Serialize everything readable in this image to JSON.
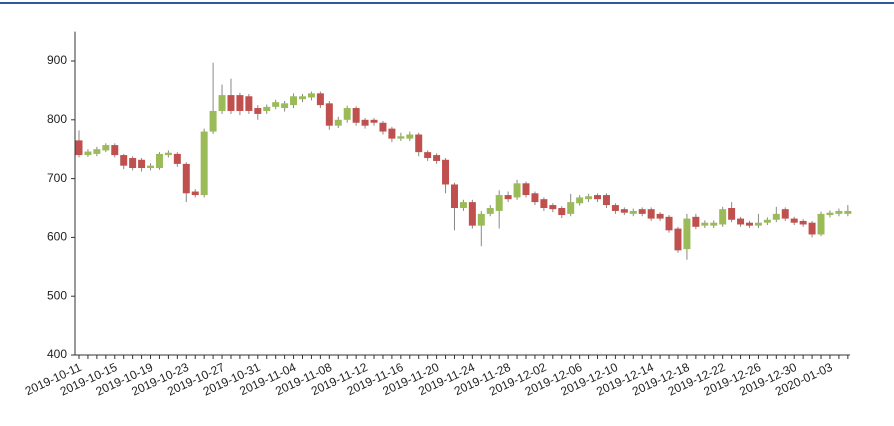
{
  "chart_data": {
    "type": "candlestick",
    "categories": [
      "2019-10-11",
      null,
      null,
      null,
      "2019-10-15",
      null,
      null,
      null,
      "2019-10-19",
      null,
      null,
      null,
      "2019-10-23",
      null,
      null,
      null,
      "2019-10-27",
      null,
      null,
      null,
      "2019-10-31",
      null,
      null,
      null,
      "2019-11-04",
      null,
      null,
      null,
      "2019-11-08",
      null,
      null,
      null,
      "2019-11-12",
      null,
      null,
      null,
      "2019-11-16",
      null,
      null,
      null,
      "2019-11-20",
      null,
      null,
      null,
      "2019-11-24",
      null,
      null,
      null,
      "2019-11-28",
      null,
      null,
      null,
      "2019-12-02",
      null,
      null,
      null,
      "2019-12-06",
      null,
      null,
      null,
      "2019-12-10",
      null,
      null,
      null,
      "2019-12-14",
      null,
      null,
      null,
      "2019-12-18",
      null,
      null,
      null,
      "2019-12-22",
      null,
      null,
      null,
      "2019-12-26",
      null,
      null,
      null,
      "2019-12-30",
      null,
      null,
      null,
      "2020-01-03",
      null,
      null
    ],
    "open": [
      765,
      740,
      742,
      748,
      757,
      740,
      735,
      732,
      718,
      718,
      740,
      742,
      725,
      678,
      672,
      780,
      815,
      842,
      842,
      840,
      820,
      815,
      822,
      820,
      825,
      835,
      838,
      845,
      828,
      790,
      800,
      820,
      800,
      800,
      795,
      785,
      768,
      768,
      775,
      745,
      740,
      732,
      690,
      650,
      660,
      620,
      640,
      645,
      672,
      668,
      692,
      675,
      665,
      655,
      650,
      640,
      658,
      665,
      672,
      672,
      655,
      648,
      640,
      648,
      648,
      640,
      635,
      615,
      580,
      635,
      620,
      620,
      622,
      650,
      632,
      625,
      620,
      625,
      630,
      648,
      632,
      628,
      625,
      605,
      638,
      640,
      640
    ],
    "high": [
      782,
      750,
      754,
      760,
      760,
      742,
      738,
      735,
      726,
      745,
      748,
      745,
      728,
      682,
      785,
      897,
      860,
      870,
      846,
      844,
      825,
      826,
      834,
      832,
      845,
      844,
      848,
      848,
      832,
      805,
      824,
      823,
      803,
      803,
      798,
      788,
      778,
      780,
      778,
      748,
      743,
      735,
      693,
      664,
      664,
      645,
      655,
      680,
      678,
      698,
      695,
      678,
      668,
      658,
      653,
      674,
      672,
      674,
      675,
      675,
      658,
      651,
      649,
      651,
      651,
      643,
      638,
      618,
      640,
      640,
      629,
      629,
      652,
      660,
      635,
      628,
      640,
      634,
      652,
      651,
      635,
      631,
      628,
      644,
      646,
      649,
      655
    ],
    "low": [
      736,
      737,
      738,
      745,
      736,
      716,
      714,
      712,
      714,
      715,
      736,
      720,
      660,
      668,
      668,
      776,
      810,
      810,
      808,
      810,
      800,
      810,
      818,
      814,
      820,
      830,
      833,
      820,
      783,
      786,
      795,
      790,
      785,
      790,
      775,
      762,
      764,
      764,
      738,
      730,
      725,
      675,
      612,
      645,
      615,
      585,
      636,
      615,
      660,
      664,
      668,
      655,
      645,
      643,
      633,
      636,
      654,
      660,
      660,
      650,
      640,
      638,
      636,
      636,
      628,
      628,
      608,
      574,
      562,
      614,
      616,
      616,
      618,
      626,
      618,
      616,
      616,
      621,
      626,
      628,
      621,
      618,
      600,
      602,
      634,
      636,
      636
    ],
    "close": [
      740,
      746,
      750,
      757,
      740,
      722,
      718,
      718,
      722,
      742,
      744,
      725,
      675,
      672,
      780,
      815,
      842,
      815,
      815,
      815,
      810,
      822,
      830,
      828,
      840,
      840,
      845,
      825,
      790,
      800,
      820,
      795,
      790,
      795,
      780,
      768,
      772,
      775,
      745,
      735,
      730,
      690,
      650,
      660,
      620,
      640,
      650,
      672,
      665,
      692,
      672,
      660,
      650,
      648,
      638,
      660,
      668,
      670,
      665,
      655,
      645,
      642,
      645,
      640,
      632,
      632,
      612,
      578,
      632,
      618,
      625,
      625,
      648,
      630,
      622,
      620,
      625,
      630,
      640,
      632,
      625,
      622,
      605,
      640,
      642,
      645,
      645
    ],
    "up_color": "#9bbb59",
    "down_color": "#c0504d",
    "ylim": [
      400,
      950
    ],
    "yticks": [
      400,
      500,
      600,
      700,
      800,
      900
    ]
  }
}
